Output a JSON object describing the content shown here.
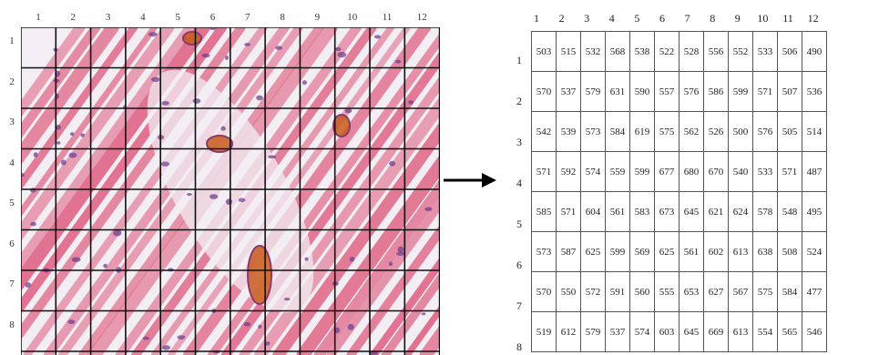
{
  "grid": {
    "column_labels": [
      "1",
      "2",
      "3",
      "4",
      "5",
      "6",
      "7",
      "8",
      "9",
      "10",
      "11",
      "12"
    ],
    "row_labels": [
      "1",
      "2",
      "3",
      "4",
      "5",
      "6",
      "7",
      "8"
    ]
  },
  "image": {
    "tissue_color": "#e06a8a",
    "background_color": "#f2eef3",
    "nucleus_color": "#6b3a8c",
    "vessel_color": "#c85a1a"
  },
  "table": {
    "column_labels": [
      "1",
      "2",
      "3",
      "4",
      "5",
      "6",
      "7",
      "8",
      "9",
      "10",
      "11",
      "12"
    ],
    "row_labels": [
      "1",
      "2",
      "3",
      "4",
      "5",
      "6",
      "7",
      "8"
    ],
    "rows": [
      [
        "503",
        "515",
        "532",
        "568",
        "538",
        "522",
        "528",
        "556",
        "552",
        "533",
        "506",
        "490"
      ],
      [
        "570",
        "537",
        "579",
        "631",
        "590",
        "557",
        "576",
        "586",
        "599",
        "571",
        "507",
        "536"
      ],
      [
        "542",
        "539",
        "573",
        "584",
        "619",
        "575",
        "562",
        "526",
        "500",
        "576",
        "505",
        "514"
      ],
      [
        "571",
        "592",
        "574",
        "559",
        "599",
        "677",
        "680",
        "670",
        "540",
        "533",
        "571",
        "487"
      ],
      [
        "585",
        "571",
        "604",
        "561",
        "583",
        "673",
        "645",
        "621",
        "624",
        "578",
        "548",
        "495"
      ],
      [
        "573",
        "587",
        "625",
        "599",
        "569",
        "625",
        "561",
        "602",
        "613",
        "638",
        "508",
        "524"
      ],
      [
        "570",
        "550",
        "572",
        "591",
        "560",
        "555",
        "653",
        "627",
        "567",
        "575",
        "584",
        "477"
      ],
      [
        "519",
        "612",
        "579",
        "537",
        "574",
        "603",
        "645",
        "669",
        "613",
        "554",
        "565",
        "546"
      ]
    ]
  }
}
